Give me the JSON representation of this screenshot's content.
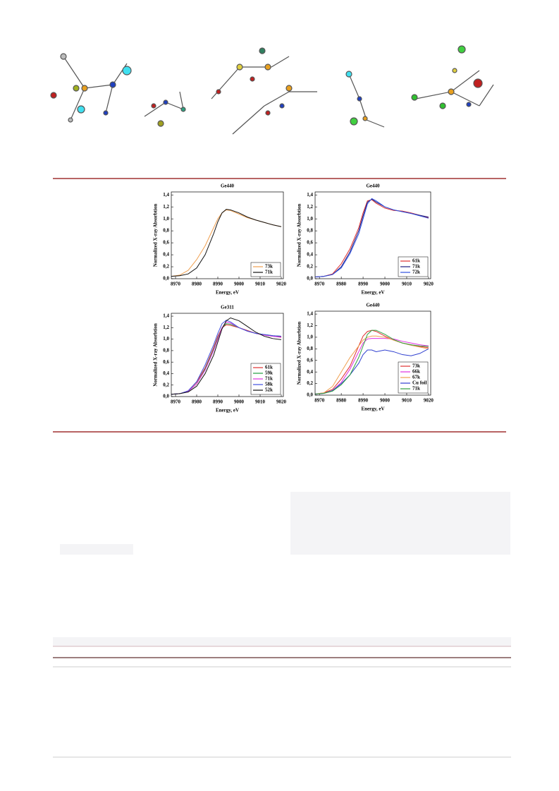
{
  "chart_data": [
    {
      "type": "line",
      "title": "Ge440",
      "x_label": "Energy, eV",
      "y_label": "Normalized X-ray Absorbtion",
      "x": [
        8968,
        8972,
        8976,
        8980,
        8984,
        8988,
        8990,
        8992,
        8994,
        8996,
        9000,
        9004,
        9008,
        9012,
        9016,
        9020
      ],
      "xlim": [
        8968,
        9021
      ],
      "ylim": [
        0,
        1.45
      ],
      "xticks": [
        8970,
        8980,
        8990,
        9000,
        9010,
        9020
      ],
      "yticks": [
        {
          "value": 0,
          "label": "0,0"
        },
        {
          "value": 0.2,
          "label": "0,2"
        },
        {
          "value": 0.4,
          "label": "0,4"
        },
        {
          "value": 0.6,
          "label": "0,6"
        },
        {
          "value": 0.8,
          "label": "0,8"
        },
        {
          "value": 1.0,
          "label": "1,0"
        },
        {
          "value": 1.2,
          "label": "1,2"
        },
        {
          "value": 1.4,
          "label": "1,4"
        }
      ],
      "series": [
        {
          "name": "73k",
          "color": "#f0a050",
          "values": [
            0.04,
            0.06,
            0.14,
            0.32,
            0.55,
            0.85,
            1.0,
            1.1,
            1.15,
            1.14,
            1.08,
            1.02,
            0.98,
            0.94,
            0.9,
            0.87
          ]
        },
        {
          "name": "71k",
          "color": "#111111",
          "values": [
            0.04,
            0.05,
            0.08,
            0.18,
            0.4,
            0.75,
            0.95,
            1.1,
            1.16,
            1.15,
            1.1,
            1.03,
            0.98,
            0.94,
            0.9,
            0.87
          ]
        }
      ]
    },
    {
      "type": "line",
      "title": "Ge440",
      "x_label": "Energy, eV",
      "y_label": "Normalized X-ray Absorbtion",
      "x": [
        8968,
        8972,
        8976,
        8980,
        8984,
        8988,
        8990,
        8992,
        8994,
        8996,
        9000,
        9004,
        9008,
        9012,
        9016,
        9020
      ],
      "xlim": [
        8968,
        9021
      ],
      "ylim": [
        0,
        1.45
      ],
      "xticks": [
        8970,
        8980,
        8990,
        9000,
        9010,
        9020
      ],
      "yticks": [
        {
          "value": 0,
          "label": "0,0"
        },
        {
          "value": 0.2,
          "label": "0,2"
        },
        {
          "value": 0.4,
          "label": "0,4"
        },
        {
          "value": 0.6,
          "label": "0,6"
        },
        {
          "value": 0.8,
          "label": "0,8"
        },
        {
          "value": 1.0,
          "label": "1,0"
        },
        {
          "value": 1.2,
          "label": "1,2"
        },
        {
          "value": 1.4,
          "label": "1,4"
        }
      ],
      "series": [
        {
          "name": "61k",
          "color": "#e03030",
          "values": [
            0.03,
            0.04,
            0.08,
            0.25,
            0.5,
            0.85,
            1.1,
            1.3,
            1.32,
            1.26,
            1.18,
            1.14,
            1.13,
            1.1,
            1.06,
            1.02
          ]
        },
        {
          "name": "71k",
          "color": "#202080",
          "values": [
            0.03,
            0.04,
            0.07,
            0.2,
            0.45,
            0.8,
            1.05,
            1.28,
            1.33,
            1.28,
            1.2,
            1.15,
            1.12,
            1.09,
            1.06,
            1.03
          ]
        },
        {
          "name": "72k",
          "color": "#3050e0",
          "values": [
            0.03,
            0.04,
            0.07,
            0.18,
            0.42,
            0.75,
            1.0,
            1.25,
            1.34,
            1.3,
            1.2,
            1.15,
            1.12,
            1.09,
            1.05,
            1.01
          ]
        }
      ]
    },
    {
      "type": "line",
      "title": "Ge311",
      "x_label": "Energy, eV",
      "y_label": "Normalized X-ray Absorbtion",
      "x": [
        8968,
        8972,
        8976,
        8980,
        8984,
        8988,
        8990,
        8992,
        8994,
        8996,
        9000,
        9004,
        9008,
        9012,
        9016,
        9020
      ],
      "xlim": [
        8968,
        9021
      ],
      "ylim": [
        0,
        1.45
      ],
      "xticks": [
        8970,
        8980,
        8990,
        9000,
        9010,
        9020
      ],
      "yticks": [
        {
          "value": 0,
          "label": "0,0"
        },
        {
          "value": 0.2,
          "label": "0,2"
        },
        {
          "value": 0.4,
          "label": "0,4"
        },
        {
          "value": 0.6,
          "label": "0,6"
        },
        {
          "value": 0.8,
          "label": "0,8"
        },
        {
          "value": 1.0,
          "label": "1,0"
        },
        {
          "value": 1.2,
          "label": "1,2"
        },
        {
          "value": 1.4,
          "label": "1,4"
        }
      ],
      "series": [
        {
          "name": "61k",
          "color": "#e03030",
          "values": [
            0.04,
            0.05,
            0.1,
            0.25,
            0.5,
            0.85,
            1.05,
            1.2,
            1.25,
            1.24,
            1.2,
            1.15,
            1.1,
            1.07,
            1.05,
            1.04
          ]
        },
        {
          "name": "59k",
          "color": "#20a040",
          "values": [
            0.04,
            0.05,
            0.09,
            0.22,
            0.48,
            0.82,
            1.02,
            1.2,
            1.27,
            1.26,
            1.2,
            1.14,
            1.1,
            1.08,
            1.06,
            1.05
          ]
        },
        {
          "name": "71k",
          "color": "#e030e0",
          "values": [
            0.04,
            0.05,
            0.09,
            0.22,
            0.46,
            0.8,
            1.0,
            1.2,
            1.3,
            1.28,
            1.2,
            1.14,
            1.1,
            1.07,
            1.05,
            1.03
          ]
        },
        {
          "name": "58k",
          "color": "#4050e0",
          "values": [
            0.04,
            0.05,
            0.1,
            0.26,
            0.55,
            0.9,
            1.1,
            1.27,
            1.33,
            1.3,
            1.2,
            1.14,
            1.1,
            1.08,
            1.06,
            1.05
          ]
        },
        {
          "name": "52k",
          "color": "#111111",
          "values": [
            0.04,
            0.05,
            0.08,
            0.18,
            0.4,
            0.72,
            0.95,
            1.18,
            1.32,
            1.37,
            1.32,
            1.22,
            1.12,
            1.05,
            1.01,
            0.99
          ]
        }
      ]
    },
    {
      "type": "line",
      "title": "Ge440",
      "x_label": "Energy, eV",
      "y_label": "Normalized X-ray Absorbtion",
      "x": [
        8968,
        8972,
        8976,
        8980,
        8984,
        8988,
        8990,
        8992,
        8994,
        8996,
        9000,
        9004,
        9008,
        9012,
        9016,
        9020
      ],
      "xlim": [
        8968,
        9021
      ],
      "ylim": [
        0,
        1.45
      ],
      "xticks": [
        8970,
        8980,
        8990,
        9000,
        9010,
        9020
      ],
      "yticks": [
        {
          "value": 0,
          "label": "0,0"
        },
        {
          "value": 0.2,
          "label": "0,2"
        },
        {
          "value": 0.4,
          "label": "0,4"
        },
        {
          "value": 0.6,
          "label": "0,6"
        },
        {
          "value": 0.8,
          "label": "0,8"
        },
        {
          "value": 1.0,
          "label": "1,0"
        },
        {
          "value": 1.2,
          "label": "1,2"
        },
        {
          "value": 1.4,
          "label": "1,4"
        }
      ],
      "series": [
        {
          "name": "73k",
          "color": "#e03030",
          "values": [
            0.02,
            0.04,
            0.1,
            0.28,
            0.5,
            0.85,
            1.02,
            1.1,
            1.12,
            1.1,
            1.02,
            0.95,
            0.9,
            0.87,
            0.84,
            0.82
          ]
        },
        {
          "name": "66k",
          "color": "#e030e0",
          "values": [
            0.02,
            0.03,
            0.08,
            0.22,
            0.45,
            0.75,
            0.9,
            0.97,
            0.98,
            0.98,
            0.98,
            0.97,
            0.93,
            0.9,
            0.87,
            0.85
          ]
        },
        {
          "name": "67k",
          "color": "#f0a050",
          "values": [
            0.02,
            0.04,
            0.15,
            0.4,
            0.65,
            0.85,
            0.95,
            1.0,
            1.02,
            1.02,
            1.0,
            0.95,
            0.9,
            0.86,
            0.83,
            0.8
          ]
        },
        {
          "name": "Cu foil",
          "color": "#3040d0",
          "values": [
            0.02,
            0.03,
            0.08,
            0.2,
            0.35,
            0.55,
            0.7,
            0.78,
            0.78,
            0.75,
            0.78,
            0.75,
            0.7,
            0.68,
            0.72,
            0.8
          ]
        },
        {
          "name": "71k",
          "color": "#30a040",
          "values": [
            0.02,
            0.03,
            0.07,
            0.18,
            0.35,
            0.65,
            0.85,
            1.05,
            1.12,
            1.12,
            1.05,
            0.96,
            0.9,
            0.87,
            0.85,
            0.84
          ]
        }
      ]
    }
  ]
}
